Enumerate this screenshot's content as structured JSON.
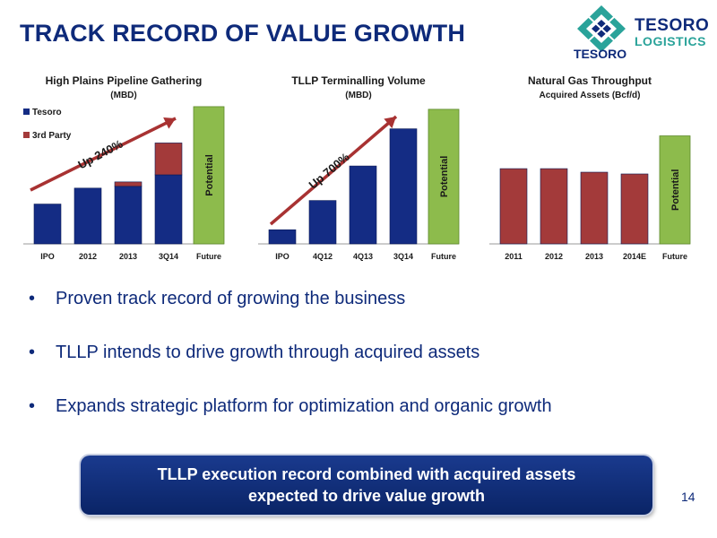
{
  "title": "TRACK RECORD OF VALUE GROWTH",
  "logo": {
    "word": "TESORO",
    "sub": "LOGISTICS",
    "bottom": "TESORO"
  },
  "colors": {
    "navy": "#0e2a7a",
    "bar_blue": "#142c84",
    "bar_red": "#a33a3a",
    "bar_green": "#8dbb4c",
    "arrow": "#a83232"
  },
  "chart_data": [
    {
      "type": "bar",
      "title": "High Plains Pipeline Gathering",
      "subtitle": "(MBD)",
      "categories": [
        "IPO",
        "2012",
        "2013",
        "3Q14",
        "Future"
      ],
      "series": [
        {
          "name": "Tesoro",
          "values": [
            45,
            63,
            65,
            78,
            null
          ]
        },
        {
          "name": "3rd Party",
          "values": [
            0,
            0,
            5,
            36,
            null
          ]
        }
      ],
      "potential": {
        "category": "Future",
        "value": 155,
        "label": "Potential"
      },
      "legend": "top-left",
      "annotation": "Up 240%",
      "ylim": [
        0,
        160
      ]
    },
    {
      "type": "bar",
      "title": "TLLP Terminalling Volume",
      "subtitle": "(MBD)",
      "categories": [
        "IPO",
        "4Q12",
        "4Q13",
        "3Q14",
        "Future"
      ],
      "series": [
        {
          "name": "Volume",
          "values": [
            16,
            49,
            88,
            130,
            null
          ]
        }
      ],
      "potential": {
        "category": "Future",
        "value": 152,
        "label": "Potential"
      },
      "annotation": "Up 700%",
      "ylim": [
        0,
        160
      ]
    },
    {
      "type": "bar",
      "title": "Natural Gas Throughput",
      "subtitle": "Acquired Assets (Bcf/d)",
      "categories": [
        "2011",
        "2012",
        "2013",
        "2014E",
        "Future"
      ],
      "series": [
        {
          "name": "Throughput",
          "values": [
            85,
            85,
            81,
            79,
            null
          ]
        }
      ],
      "potential": {
        "category": "Future",
        "value": 122,
        "label": "Potential"
      },
      "ylim": [
        0,
        160
      ]
    }
  ],
  "bullets": [
    "Proven track record of growing the business",
    "TLLP intends to drive growth through acquired assets",
    "Expands strategic platform for optimization and organic growth"
  ],
  "bullet_glyph": "•",
  "callout": {
    "line1": "TLLP execution record combined with acquired assets",
    "line2": "expected to drive value growth"
  },
  "page_number": "14"
}
